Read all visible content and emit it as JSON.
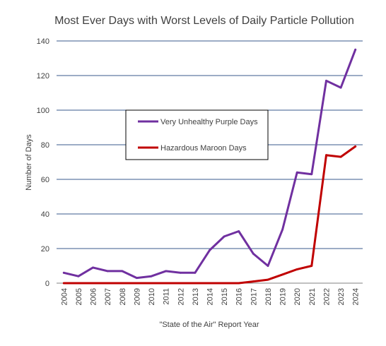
{
  "chart_data": {
    "type": "line",
    "title": "Most Ever Days with Worst Levels of Daily Particle Pollution",
    "xlabel": "\"State of the Air\" Report Year",
    "ylabel": "Number of Days",
    "ylim": [
      0,
      140
    ],
    "yticks": [
      0,
      20,
      40,
      60,
      80,
      100,
      120,
      140
    ],
    "grid": "horizontal",
    "legend_position": "upper-left",
    "categories": [
      "2004",
      "2005",
      "2006",
      "2007",
      "2008",
      "2009",
      "2010",
      "2011",
      "2012",
      "2013",
      "2014",
      "2015",
      "2016",
      "2017",
      "2018",
      "2019",
      "2020",
      "2021",
      "2022",
      "2023",
      "2024"
    ],
    "series": [
      {
        "name": "Very Unhealthy Purple Days",
        "color": "#7030A0",
        "values": [
          6,
          4,
          9,
          7,
          7,
          3,
          4,
          7,
          6,
          6,
          19,
          27,
          30,
          17,
          10,
          31,
          64,
          63,
          117,
          113,
          135
        ]
      },
      {
        "name": "Hazardous Maroon Days",
        "color": "#C00000",
        "values": [
          0,
          0,
          0,
          0,
          0,
          0,
          0,
          0,
          0,
          0,
          0,
          0,
          0,
          1,
          2,
          5,
          8,
          10,
          74,
          73,
          79
        ]
      }
    ]
  }
}
